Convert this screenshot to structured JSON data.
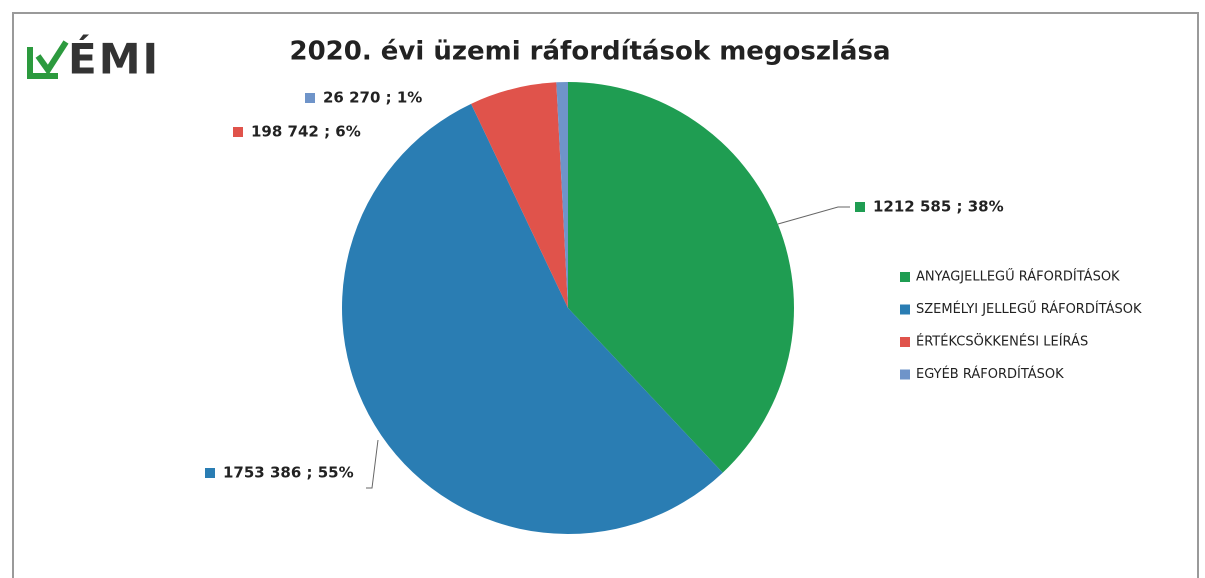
{
  "chart_data": {
    "type": "pie",
    "logo": "ÉMI",
    "title": "2020. évi üzemi ráfordítások megoszlása",
    "categories": [
      "ANYAGJELLEGŰ RÁFORDÍTÁSOK",
      "SZEMÉLYI JELLEGŰ RÁFORDÍTÁSOK",
      "ÉRTÉKCSÖKKENÉSI LEÍRÁS",
      "EGYÉB RÁFORDÍTÁSOK"
    ],
    "values": [
      1212585,
      1753386,
      198742,
      26270
    ],
    "value_labels": [
      "1212 585 ; 38%",
      "1753 386 ; 55%",
      "198 742 ; 6%",
      "26 270 ; 1%"
    ],
    "colors": [
      "#1f9d52",
      "#2a7db3",
      "#e0534b",
      "#6f94c9"
    ],
    "legend": "right"
  }
}
